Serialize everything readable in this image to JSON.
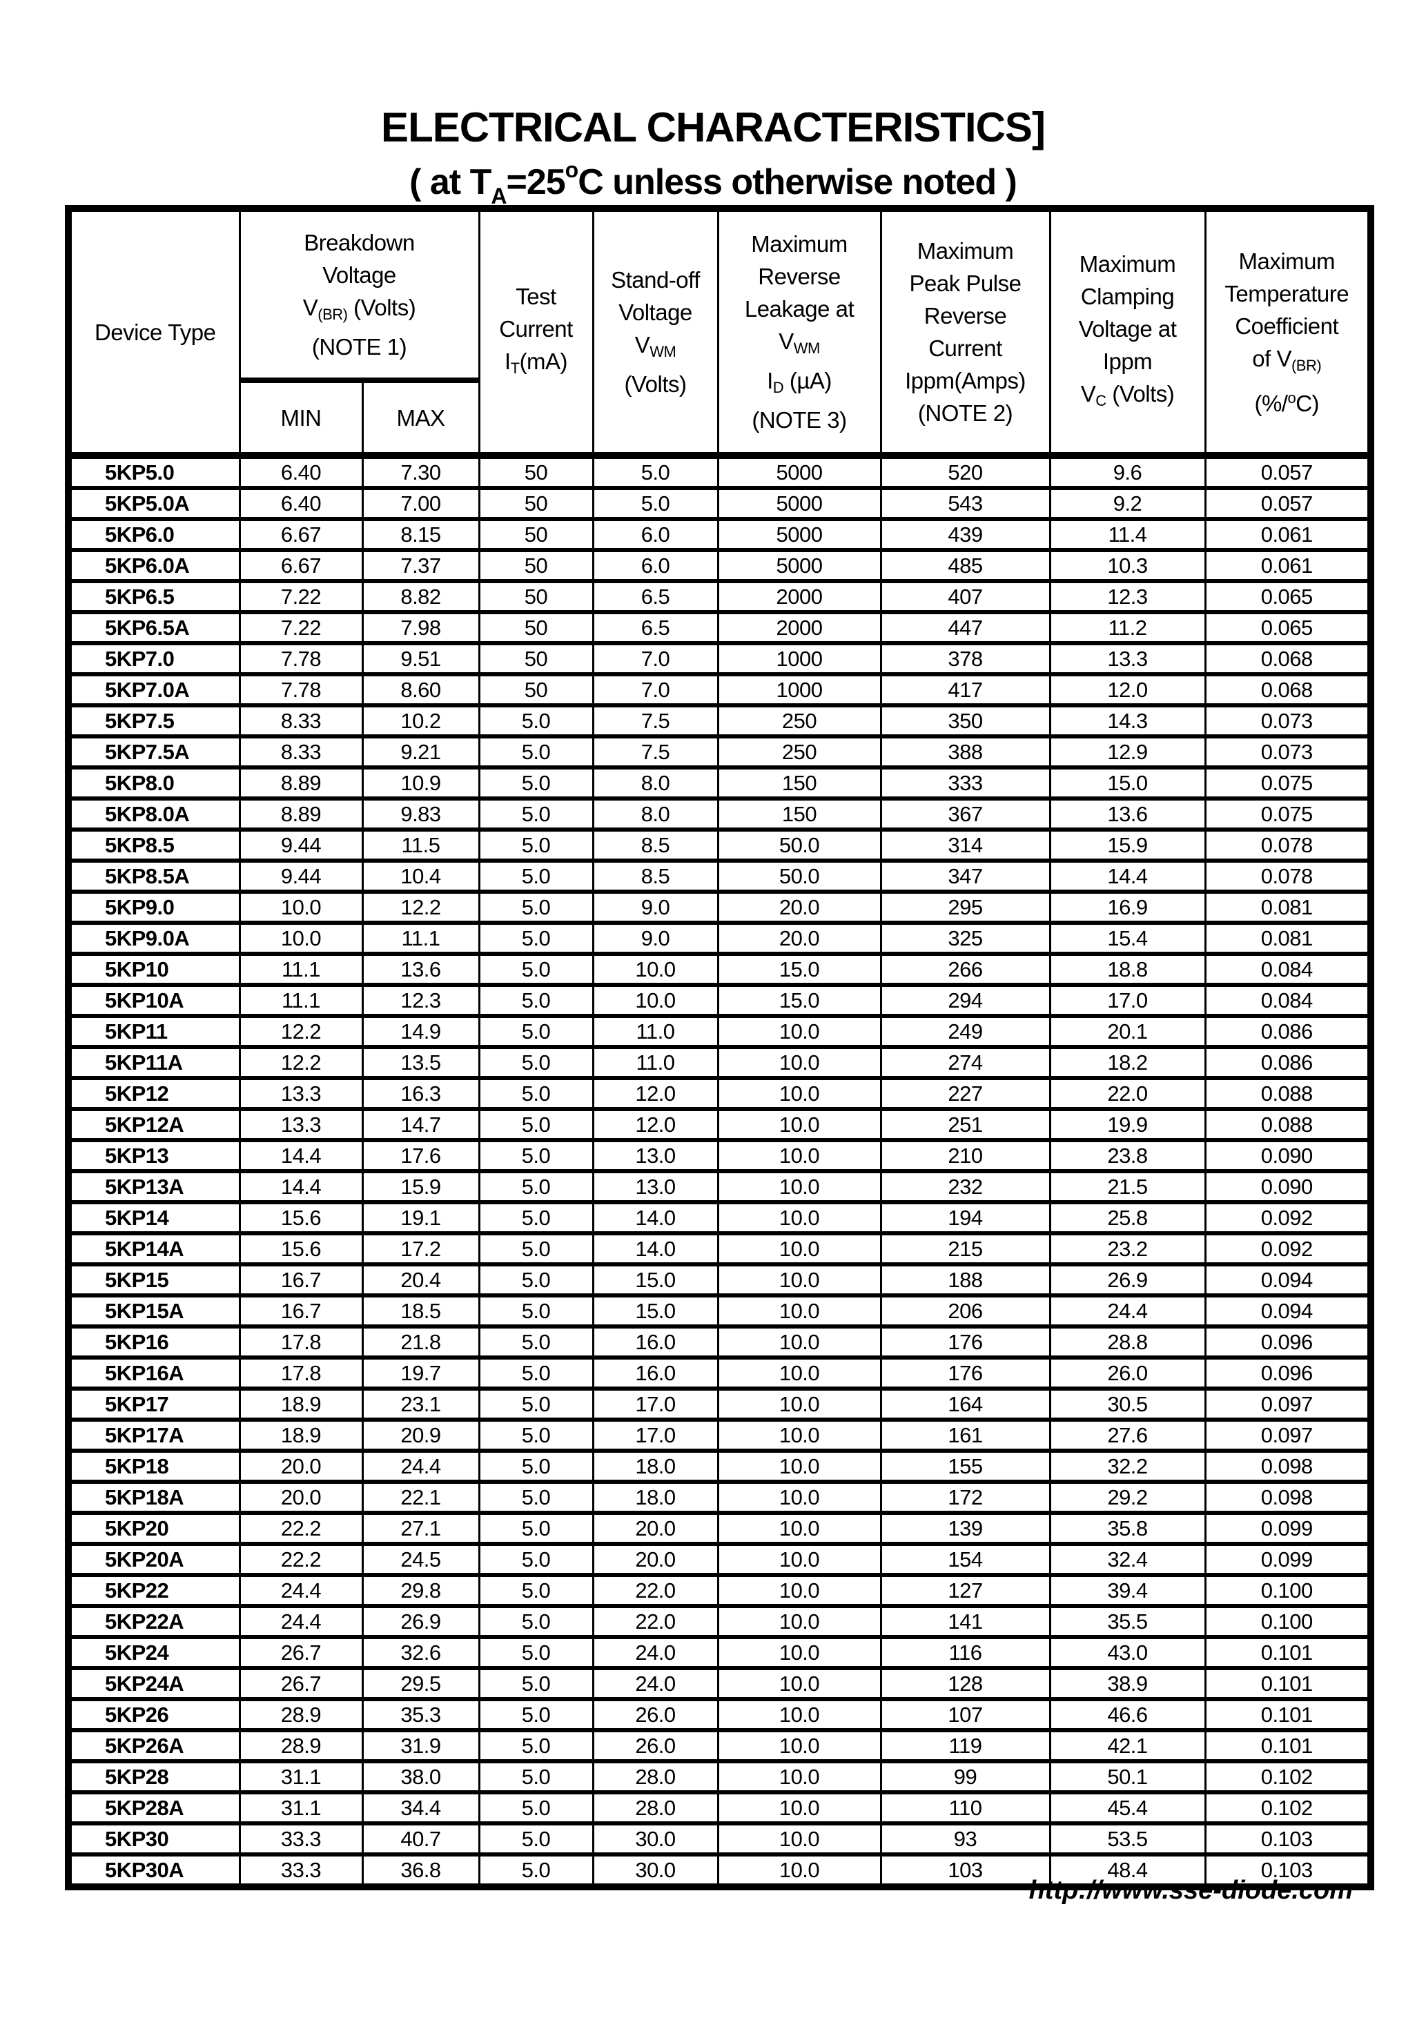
{
  "title": "ELECTRICAL CHARACTERISTICS]",
  "subtitle": {
    "pre": "( at T",
    "sub": "A",
    "mid": "=25",
    "sup": "o",
    "post": "C unless otherwise noted )"
  },
  "headers": {
    "device_type": "Device Type",
    "breakdown": {
      "l1": "Breakdown",
      "l2": "Voltage",
      "l3a": "V",
      "l3sub": "(BR)",
      "l3b": " (Volts)",
      "l4": "(NOTE 1)"
    },
    "min": "MIN",
    "max": "MAX",
    "test_current": {
      "l1": "Test",
      "l2": "Current",
      "l3a": "I",
      "l3sub": "T",
      "l3b": "(mA)"
    },
    "standoff": {
      "l1": "Stand-off",
      "l2": "Voltage",
      "l3a": "V",
      "l3sub": "WM",
      "l4": "(Volts)"
    },
    "leakage": {
      "l1": "Maximum",
      "l2": "Reverse",
      "l3": "Leakage at",
      "l4a": "V",
      "l4sub": "WM",
      "l5a": "I",
      "l5sub": "D",
      "l5b": " (µA)",
      "l6": "(NOTE 3)"
    },
    "peak_pulse": {
      "l1": "Maximum",
      "l2": "Peak Pulse",
      "l3": "Reverse",
      "l4": "Current",
      "l5": "Ippm(Amps)",
      "l6": "(NOTE 2)"
    },
    "clamping": {
      "l1": "Maximum",
      "l2": "Clamping",
      "l3": "Voltage at",
      "l4": "Ippm",
      "l5a": "V",
      "l5sub": "C",
      "l5b": " (Volts)"
    },
    "temp_coeff": {
      "l1": "Maximum",
      "l2": "Temperature",
      "l3": "Coefficient",
      "l4a": "of V",
      "l4sub": "(BR)",
      "l5a": "(%/",
      "l5sup": "o",
      "l5b": "C)"
    }
  },
  "rows": [
    [
      "5KP5.0",
      "6.40",
      "7.30",
      "50",
      "5.0",
      "5000",
      "520",
      "9.6",
      "0.057"
    ],
    [
      "5KP5.0A",
      "6.40",
      "7.00",
      "50",
      "5.0",
      "5000",
      "543",
      "9.2",
      "0.057"
    ],
    [
      "5KP6.0",
      "6.67",
      "8.15",
      "50",
      "6.0",
      "5000",
      "439",
      "11.4",
      "0.061"
    ],
    [
      "5KP6.0A",
      "6.67",
      "7.37",
      "50",
      "6.0",
      "5000",
      "485",
      "10.3",
      "0.061"
    ],
    [
      "5KP6.5",
      "7.22",
      "8.82",
      "50",
      "6.5",
      "2000",
      "407",
      "12.3",
      "0.065"
    ],
    [
      "5KP6.5A",
      "7.22",
      "7.98",
      "50",
      "6.5",
      "2000",
      "447",
      "11.2",
      "0.065"
    ],
    [
      "5KP7.0",
      "7.78",
      "9.51",
      "50",
      "7.0",
      "1000",
      "378",
      "13.3",
      "0.068"
    ],
    [
      "5KP7.0A",
      "7.78",
      "8.60",
      "50",
      "7.0",
      "1000",
      "417",
      "12.0",
      "0.068"
    ],
    [
      "5KP7.5",
      "8.33",
      "10.2",
      "5.0",
      "7.5",
      "250",
      "350",
      "14.3",
      "0.073"
    ],
    [
      "5KP7.5A",
      "8.33",
      "9.21",
      "5.0",
      "7.5",
      "250",
      "388",
      "12.9",
      "0.073"
    ],
    [
      "5KP8.0",
      "8.89",
      "10.9",
      "5.0",
      "8.0",
      "150",
      "333",
      "15.0",
      "0.075"
    ],
    [
      "5KP8.0A",
      "8.89",
      "9.83",
      "5.0",
      "8.0",
      "150",
      "367",
      "13.6",
      "0.075"
    ],
    [
      "5KP8.5",
      "9.44",
      "11.5",
      "5.0",
      "8.5",
      "50.0",
      "314",
      "15.9",
      "0.078"
    ],
    [
      "5KP8.5A",
      "9.44",
      "10.4",
      "5.0",
      "8.5",
      "50.0",
      "347",
      "14.4",
      "0.078"
    ],
    [
      "5KP9.0",
      "10.0",
      "12.2",
      "5.0",
      "9.0",
      "20.0",
      "295",
      "16.9",
      "0.081"
    ],
    [
      "5KP9.0A",
      "10.0",
      "11.1",
      "5.0",
      "9.0",
      "20.0",
      "325",
      "15.4",
      "0.081"
    ],
    [
      "5KP10",
      "11.1",
      "13.6",
      "5.0",
      "10.0",
      "15.0",
      "266",
      "18.8",
      "0.084"
    ],
    [
      "5KP10A",
      "11.1",
      "12.3",
      "5.0",
      "10.0",
      "15.0",
      "294",
      "17.0",
      "0.084"
    ],
    [
      "5KP11",
      "12.2",
      "14.9",
      "5.0",
      "11.0",
      "10.0",
      "249",
      "20.1",
      "0.086"
    ],
    [
      "5KP11A",
      "12.2",
      "13.5",
      "5.0",
      "11.0",
      "10.0",
      "274",
      "18.2",
      "0.086"
    ],
    [
      "5KP12",
      "13.3",
      "16.3",
      "5.0",
      "12.0",
      "10.0",
      "227",
      "22.0",
      "0.088"
    ],
    [
      "5KP12A",
      "13.3",
      "14.7",
      "5.0",
      "12.0",
      "10.0",
      "251",
      "19.9",
      "0.088"
    ],
    [
      "5KP13",
      "14.4",
      "17.6",
      "5.0",
      "13.0",
      "10.0",
      "210",
      "23.8",
      "0.090"
    ],
    [
      "5KP13A",
      "14.4",
      "15.9",
      "5.0",
      "13.0",
      "10.0",
      "232",
      "21.5",
      "0.090"
    ],
    [
      "5KP14",
      "15.6",
      "19.1",
      "5.0",
      "14.0",
      "10.0",
      "194",
      "25.8",
      "0.092"
    ],
    [
      "5KP14A",
      "15.6",
      "17.2",
      "5.0",
      "14.0",
      "10.0",
      "215",
      "23.2",
      "0.092"
    ],
    [
      "5KP15",
      "16.7",
      "20.4",
      "5.0",
      "15.0",
      "10.0",
      "188",
      "26.9",
      "0.094"
    ],
    [
      "5KP15A",
      "16.7",
      "18.5",
      "5.0",
      "15.0",
      "10.0",
      "206",
      "24.4",
      "0.094"
    ],
    [
      "5KP16",
      "17.8",
      "21.8",
      "5.0",
      "16.0",
      "10.0",
      "176",
      "28.8",
      "0.096"
    ],
    [
      "5KP16A",
      "17.8",
      "19.7",
      "5.0",
      "16.0",
      "10.0",
      "176",
      "26.0",
      "0.096"
    ],
    [
      "5KP17",
      "18.9",
      "23.1",
      "5.0",
      "17.0",
      "10.0",
      "164",
      "30.5",
      "0.097"
    ],
    [
      "5KP17A",
      "18.9",
      "20.9",
      "5.0",
      "17.0",
      "10.0",
      "161",
      "27.6",
      "0.097"
    ],
    [
      "5KP18",
      "20.0",
      "24.4",
      "5.0",
      "18.0",
      "10.0",
      "155",
      "32.2",
      "0.098"
    ],
    [
      "5KP18A",
      "20.0",
      "22.1",
      "5.0",
      "18.0",
      "10.0",
      "172",
      "29.2",
      "0.098"
    ],
    [
      "5KP20",
      "22.2",
      "27.1",
      "5.0",
      "20.0",
      "10.0",
      "139",
      "35.8",
      "0.099"
    ],
    [
      "5KP20A",
      "22.2",
      "24.5",
      "5.0",
      "20.0",
      "10.0",
      "154",
      "32.4",
      "0.099"
    ],
    [
      "5KP22",
      "24.4",
      "29.8",
      "5.0",
      "22.0",
      "10.0",
      "127",
      "39.4",
      "0.100"
    ],
    [
      "5KP22A",
      "24.4",
      "26.9",
      "5.0",
      "22.0",
      "10.0",
      "141",
      "35.5",
      "0.100"
    ],
    [
      "5KP24",
      "26.7",
      "32.6",
      "5.0",
      "24.0",
      "10.0",
      "116",
      "43.0",
      "0.101"
    ],
    [
      "5KP24A",
      "26.7",
      "29.5",
      "5.0",
      "24.0",
      "10.0",
      "128",
      "38.9",
      "0.101"
    ],
    [
      "5KP26",
      "28.9",
      "35.3",
      "5.0",
      "26.0",
      "10.0",
      "107",
      "46.6",
      "0.101"
    ],
    [
      "5KP26A",
      "28.9",
      "31.9",
      "5.0",
      "26.0",
      "10.0",
      "119",
      "42.1",
      "0.101"
    ],
    [
      "5KP28",
      "31.1",
      "38.0",
      "5.0",
      "28.0",
      "10.0",
      "99",
      "50.1",
      "0.102"
    ],
    [
      "5KP28A",
      "31.1",
      "34.4",
      "5.0",
      "28.0",
      "10.0",
      "110",
      "45.4",
      "0.102"
    ],
    [
      "5KP30",
      "33.3",
      "40.7",
      "5.0",
      "30.0",
      "10.0",
      "93",
      "53.5",
      "0.103"
    ],
    [
      "5KP30A",
      "33.3",
      "36.8",
      "5.0",
      "30.0",
      "10.0",
      "103",
      "48.4",
      "0.103"
    ]
  ],
  "footer_url": "http://www.sse-diode.com"
}
